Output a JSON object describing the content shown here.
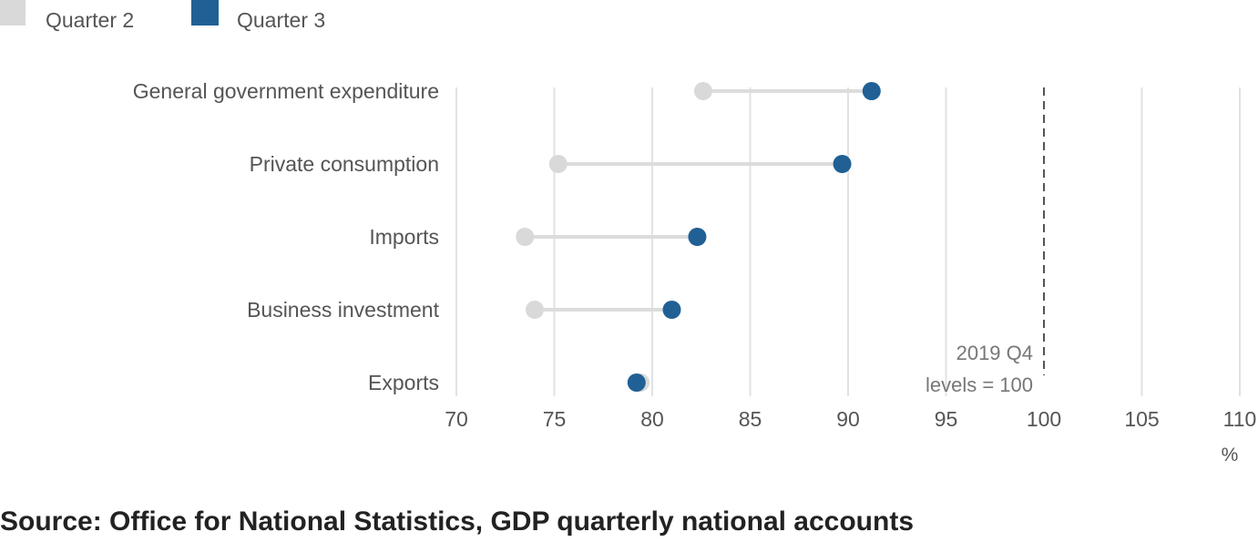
{
  "chart_data": {
    "type": "dumbbell",
    "series": [
      {
        "name": "Quarter 2",
        "color": "#d9d9d9",
        "values": [
          82.6,
          75.2,
          73.5,
          74.0,
          79.4
        ]
      },
      {
        "name": "Quarter 3",
        "color": "#206095",
        "values": [
          91.2,
          89.7,
          82.3,
          81.0,
          79.2
        ]
      }
    ],
    "categories": [
      "General government expenditure",
      "Private consumption",
      "Imports",
      "Business investment",
      "Exports"
    ],
    "xlim": [
      70,
      110
    ],
    "xticks": [
      "70",
      "75",
      "80",
      "85",
      "90",
      "95",
      "100",
      "105",
      "110"
    ],
    "xunit": "%",
    "grid": true,
    "legend_position": "top-left",
    "reference_line": {
      "value": 100,
      "label_line1": "2019 Q4",
      "label_line2": "levels = 100"
    }
  },
  "source": "Source: Office for National Statistics, GDP quarterly national accounts"
}
